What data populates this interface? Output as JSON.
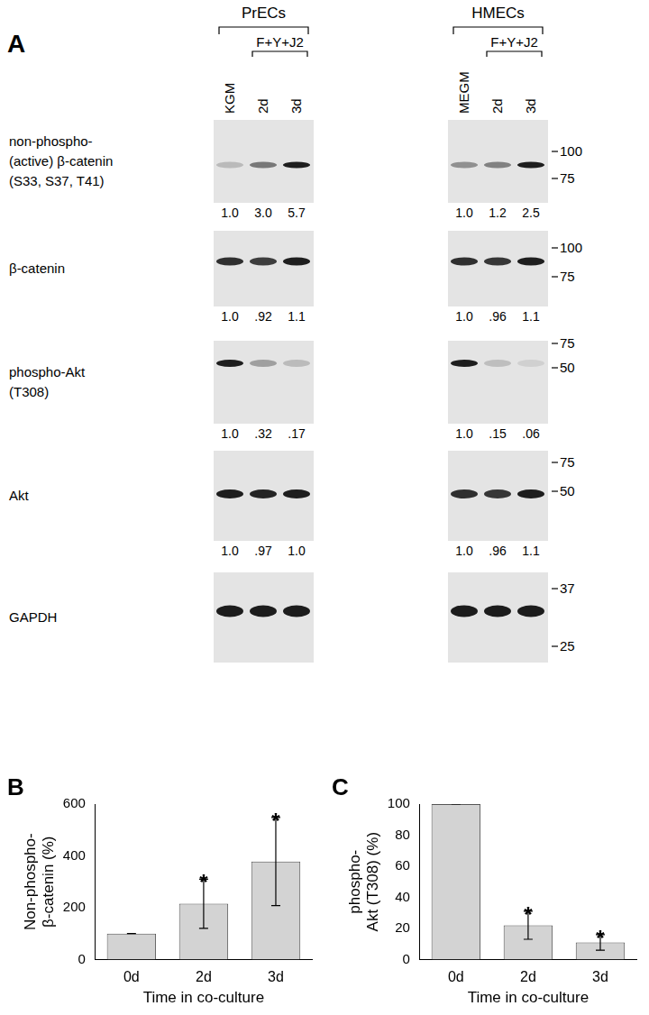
{
  "panel_labels": [
    "A",
    "B",
    "C"
  ],
  "blots": {
    "groups": [
      {
        "name": "PrECs",
        "lanes": [
          "KGM",
          "2d",
          "3d"
        ],
        "treatment": "F+Y+J2"
      },
      {
        "name": "HMECs",
        "lanes": [
          "MEGM",
          "2d",
          "3d"
        ],
        "treatment": "F+Y+J2"
      }
    ],
    "rows": [
      {
        "label": [
          "non-phospho-",
          "(active) β-catenin",
          "(S33, S37, T41)"
        ],
        "markers_kDa": [
          100,
          75
        ],
        "quant": [
          [
            "1.0",
            "3.0",
            "5.7"
          ],
          [
            "1.0",
            "1.2",
            "2.5"
          ]
        ]
      },
      {
        "label": [
          "β-catenin"
        ],
        "markers_kDa": [
          100,
          75
        ],
        "quant": [
          [
            "1.0",
            ".92",
            "1.1"
          ],
          [
            "1.0",
            ".96",
            "1.1"
          ]
        ]
      },
      {
        "label": [
          "phospho-Akt",
          "(T308)"
        ],
        "markers_kDa": [
          75,
          50
        ],
        "quant": [
          [
            "1.0",
            ".32",
            ".17"
          ],
          [
            "1.0",
            ".15",
            ".06"
          ]
        ]
      },
      {
        "label": [
          "Akt"
        ],
        "markers_kDa": [
          75,
          50
        ],
        "quant": [
          [
            "1.0",
            ".97",
            "1.0"
          ],
          [
            "1.0",
            ".96",
            "1.1"
          ]
        ]
      },
      {
        "label": [
          "GAPDH"
        ],
        "markers_kDa": [
          37,
          25
        ]
      }
    ]
  },
  "chart_data": [
    {
      "type": "bar",
      "ylabel": [
        "Non-phospho-",
        "β-catenin (%)"
      ],
      "xlabel": "Time in co-culture",
      "categories": [
        "0d",
        "2d",
        "3d"
      ],
      "values": [
        100,
        215,
        378
      ],
      "errors": [
        0,
        95,
        170
      ],
      "color": "#d3d3d3",
      "ylim": [
        0,
        600
      ],
      "yticks": [
        0,
        200,
        400,
        600
      ],
      "grid": false,
      "annotations": [
        {
          "category": "2d",
          "text": "*"
        },
        {
          "category": "3d",
          "text": "*"
        }
      ]
    },
    {
      "type": "bar",
      "ylabel": [
        "phospho-",
        "Akt (T308) (%)"
      ],
      "xlabel": "Time in co-culture",
      "categories": [
        "0d",
        "2d",
        "3d"
      ],
      "values": [
        100,
        22,
        11
      ],
      "errors": [
        0,
        9,
        5
      ],
      "color": "#d3d3d3",
      "ylim": [
        0,
        100
      ],
      "yticks": [
        0,
        20,
        40,
        60,
        80,
        100
      ],
      "grid": false,
      "annotations": [
        {
          "category": "2d",
          "text": "*"
        },
        {
          "category": "3d",
          "text": "*"
        }
      ]
    }
  ]
}
